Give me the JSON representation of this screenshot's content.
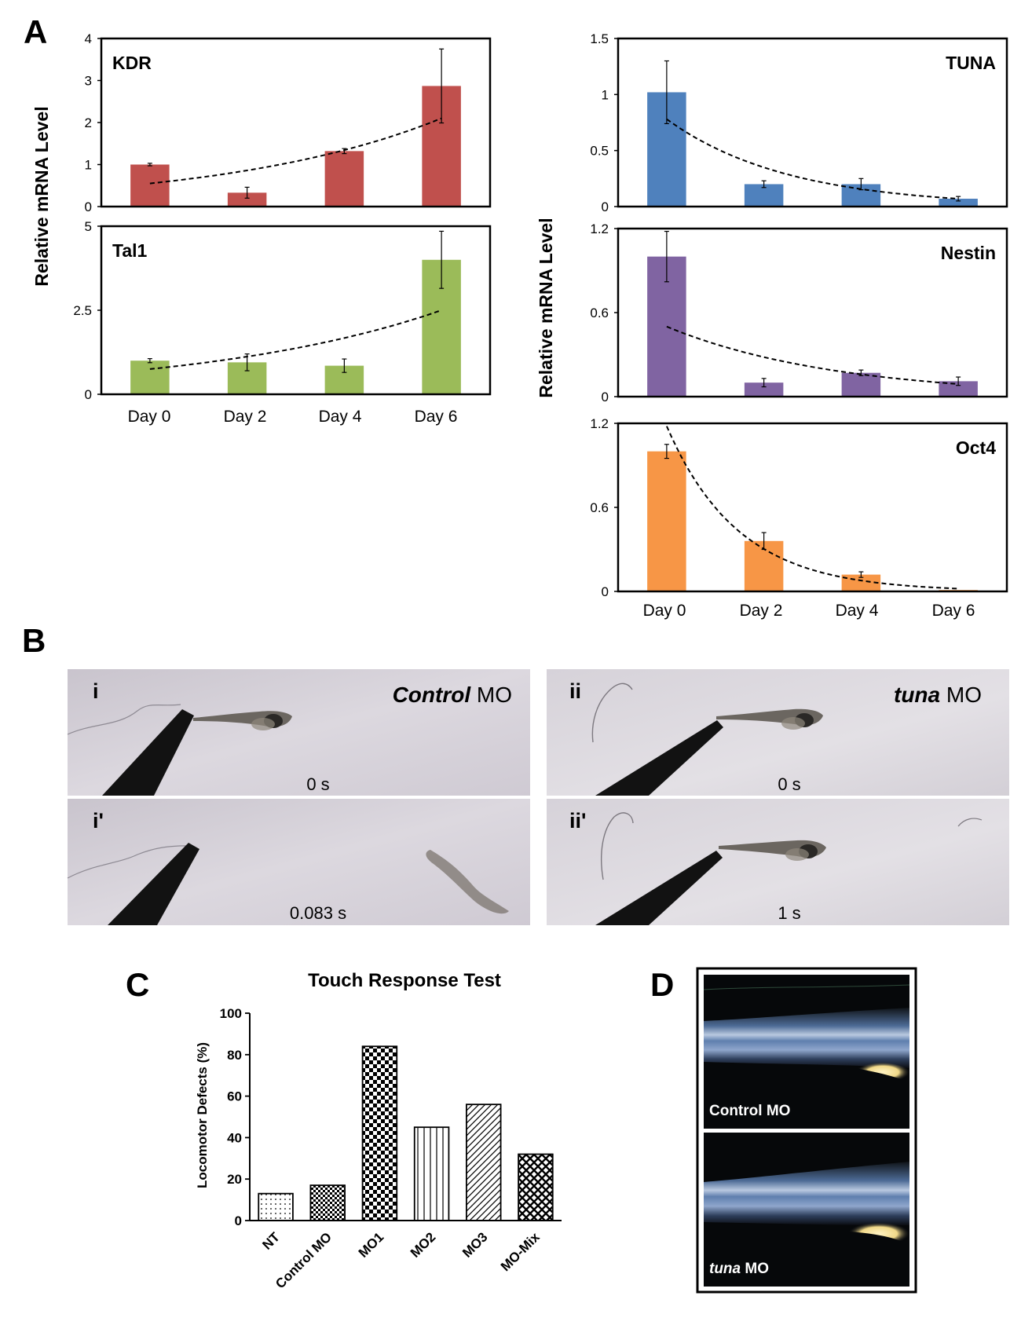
{
  "panels": {
    "A": "A",
    "B": "B",
    "C": "C",
    "D": "D"
  },
  "panel_a": {
    "ylabel": "Relative mRNA Level",
    "categories": [
      "Day 0",
      "Day 2",
      "Day 4",
      "Day 6"
    ]
  },
  "chart_data": [
    {
      "type": "bar",
      "panel": "A",
      "title": "KDR",
      "categories": [
        "Day 0",
        "Day 2",
        "Day 4",
        "Day 6"
      ],
      "values": [
        1.0,
        0.33,
        1.32,
        2.87
      ],
      "errors": [
        0.03,
        0.13,
        0.06,
        0.88
      ],
      "ylim": [
        0,
        4
      ],
      "yticks": [
        0,
        1,
        2,
        3,
        4
      ],
      "ytick_labels": [
        "0",
        "1",
        "2",
        "3",
        "4"
      ],
      "trend": "exponential",
      "trend_values": [
        0.55,
        0.88,
        1.38,
        2.1
      ],
      "color": "#c0504d"
    },
    {
      "type": "bar",
      "panel": "A",
      "title": "Tal1",
      "categories": [
        "Day 0",
        "Day 2",
        "Day 4",
        "Day 6"
      ],
      "values": [
        1.0,
        0.95,
        0.85,
        4.0
      ],
      "errors": [
        0.06,
        0.25,
        0.2,
        0.85
      ],
      "ylim": [
        0,
        5
      ],
      "yticks": [
        0,
        2.5,
        5
      ],
      "ytick_labels": [
        "0",
        "2.5",
        "5"
      ],
      "trend": "exponential",
      "trend_values": [
        0.75,
        1.1,
        1.65,
        2.5
      ],
      "color": "#9bbb59"
    },
    {
      "type": "bar",
      "panel": "A",
      "title": "TUNA",
      "categories": [
        "Day 0",
        "Day 2",
        "Day 4",
        "Day 6"
      ],
      "values": [
        1.02,
        0.2,
        0.2,
        0.07
      ],
      "errors": [
        0.28,
        0.03,
        0.05,
        0.02
      ],
      "ylim": [
        0,
        1.5
      ],
      "yticks": [
        0,
        0.5,
        1,
        1.5
      ],
      "ytick_labels": [
        "0",
        "0.5",
        "1",
        "1.5"
      ],
      "trend": "exponential",
      "trend_values": [
        0.78,
        0.35,
        0.15,
        0.07
      ],
      "color": "#4f81bd"
    },
    {
      "type": "bar",
      "panel": "A",
      "title": "Nestin",
      "categories": [
        "Day 0",
        "Day 2",
        "Day 4",
        "Day 6"
      ],
      "values": [
        1.0,
        0.1,
        0.17,
        0.11
      ],
      "errors": [
        0.18,
        0.03,
        0.02,
        0.03
      ],
      "ylim": [
        0,
        1.2
      ],
      "yticks": [
        0,
        0.6,
        1.2
      ],
      "ytick_labels": [
        "0",
        "0.6",
        "1.2"
      ],
      "trend": "exponential",
      "trend_values": [
        0.5,
        0.27,
        0.15,
        0.09
      ],
      "color": "#8064a2"
    },
    {
      "type": "bar",
      "panel": "A",
      "title": "Oct4",
      "categories": [
        "Day 0",
        "Day 2",
        "Day 4",
        "Day 6"
      ],
      "values": [
        1.0,
        0.36,
        0.12,
        0.01
      ],
      "errors": [
        0.05,
        0.06,
        0.02,
        0.0
      ],
      "ylim": [
        0,
        1.2
      ],
      "yticks": [
        0,
        0.6,
        1.2
      ],
      "ytick_labels": [
        "0",
        "0.6",
        "1.2"
      ],
      "trend": "exponential",
      "trend_values": [
        1.18,
        0.36,
        0.09,
        0.02
      ],
      "color": "#f79646"
    },
    {
      "type": "bar",
      "panel": "C",
      "title": "Touch Response Test",
      "ylabel": "Locomotor Defects (%)",
      "categories": [
        "NT",
        "Control MO",
        "MO1",
        "MO2",
        "MO3",
        "MO-Mix"
      ],
      "values": [
        13,
        17,
        84,
        45,
        56,
        32
      ],
      "patterns": [
        "dots",
        "check-small",
        "check-large",
        "vertical",
        "diagonal",
        "crosshatch"
      ],
      "ylim": [
        0,
        100
      ],
      "yticks": [
        0,
        20,
        40,
        60,
        80,
        100
      ],
      "ytick_labels": [
        "0",
        "20",
        "40",
        "60",
        "80",
        "100"
      ]
    }
  ],
  "panel_b": {
    "photos": [
      {
        "label": "i",
        "tag_italic": "Control",
        "tag_rest": " MO",
        "time": "0 s"
      },
      {
        "label": "ii",
        "tag_italic": "tuna",
        "tag_rest": " MO",
        "time": "0 s"
      },
      {
        "label": "i'",
        "tag_italic": "",
        "tag_rest": "",
        "time": "0.083 s"
      },
      {
        "label": "ii'",
        "tag_italic": "",
        "tag_rest": "",
        "time": "1 s"
      }
    ]
  },
  "panel_d": {
    "top_label": "Control MO",
    "bottom_label_italic": "tuna",
    "bottom_label_rest": " MO"
  }
}
